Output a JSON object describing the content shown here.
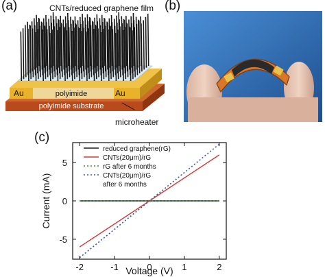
{
  "panels": {
    "a": "(a)",
    "b": "(b)",
    "c": "(c)"
  },
  "schematic": {
    "title": "CNTs/reduced graphene film",
    "au_left": "Au",
    "au_right": "Au",
    "polyimide": "polyimide",
    "substrate": "polyimide substrate",
    "microheater": "microheater"
  },
  "colors": {
    "gold": "#e8b32a",
    "substrate": "#b84a1c",
    "cnt": "#1a1a1a",
    "sky": "#2a6fb8",
    "red_line": "#d23a3a",
    "green_dot": "#3c8a3c",
    "blue_dot": "#3a5a9a"
  },
  "chart_data": {
    "type": "line",
    "xlabel": "Voltage (V)",
    "ylabel": "Current (mA)",
    "xlim": [
      -2.2,
      2.2
    ],
    "ylim": [
      -7.6,
      7.6
    ],
    "xticks": [
      "-2",
      "-1",
      "0",
      "1",
      "2"
    ],
    "yticks": [
      "-5",
      "0",
      "5"
    ],
    "series": [
      {
        "name": "reduced graphene(rG)",
        "style": "solid",
        "color": "#1a1a1a",
        "x": [
          -2,
          2
        ],
        "y": [
          0,
          0
        ]
      },
      {
        "name": "CNTs(20μm)/rG",
        "style": "solid",
        "color": "#d23a3a",
        "x": [
          -2,
          2
        ],
        "y": [
          -6.0,
          6.0
        ]
      },
      {
        "name": "rG after 6 months",
        "style": "dotted",
        "color": "#3c8a3c",
        "x": [
          -2,
          2
        ],
        "y": [
          0,
          0
        ]
      },
      {
        "name": "CNTs(20μm)/rG\nafter 6 months",
        "style": "dotted",
        "color": "#3a5a9a",
        "x": [
          -2,
          2
        ],
        "y": [
          -7.4,
          7.4
        ]
      }
    ],
    "legend_lines": [
      "reduced graphene(rG)",
      "CNTs(20μm)/rG",
      "rG after 6 months",
      "CNTs(20μm)/rG",
      "after 6 months"
    ],
    "legend_position": "top-left"
  }
}
